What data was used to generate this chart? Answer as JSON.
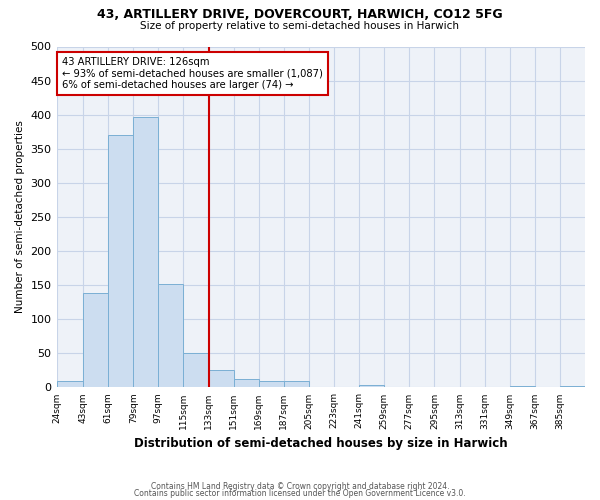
{
  "title": "43, ARTILLERY DRIVE, DOVERCOURT, HARWICH, CO12 5FG",
  "subtitle": "Size of property relative to semi-detached houses in Harwich",
  "xlabel": "Distribution of semi-detached houses by size in Harwich",
  "ylabel": "Number of semi-detached properties",
  "bar_color": "#ccddf0",
  "bar_edge_color": "#7aafd4",
  "bin_edges": [
    24,
    43,
    61,
    79,
    97,
    115,
    133,
    151,
    169,
    187,
    205,
    223,
    241,
    259,
    277,
    295,
    313,
    331,
    349,
    367,
    385,
    403
  ],
  "bin_labels": [
    "24sqm",
    "43sqm",
    "61sqm",
    "79sqm",
    "97sqm",
    "115sqm",
    "133sqm",
    "151sqm",
    "169sqm",
    "187sqm",
    "205sqm",
    "223sqm",
    "241sqm",
    "259sqm",
    "277sqm",
    "295sqm",
    "313sqm",
    "331sqm",
    "349sqm",
    "367sqm",
    "385sqm"
  ],
  "counts": [
    10,
    138,
    370,
    397,
    152,
    50,
    25,
    13,
    10,
    10,
    0,
    0,
    3,
    0,
    0,
    0,
    0,
    0,
    2,
    0,
    2
  ],
  "vline_x": 133,
  "vline_color": "#cc0000",
  "annotation_title": "43 ARTILLERY DRIVE: 126sqm",
  "annotation_line1": "← 93% of semi-detached houses are smaller (1,087)",
  "annotation_line2": "6% of semi-detached houses are larger (74) →",
  "annotation_box_color": "#ffffff",
  "annotation_box_edge_color": "#cc0000",
  "ylim": [
    0,
    500
  ],
  "xlim_left": 24,
  "xlim_right": 403,
  "footer1": "Contains HM Land Registry data © Crown copyright and database right 2024.",
  "footer2": "Contains public sector information licensed under the Open Government Licence v3.0.",
  "grid_color": "#c8d4e8",
  "background_color": "#eef2f8"
}
